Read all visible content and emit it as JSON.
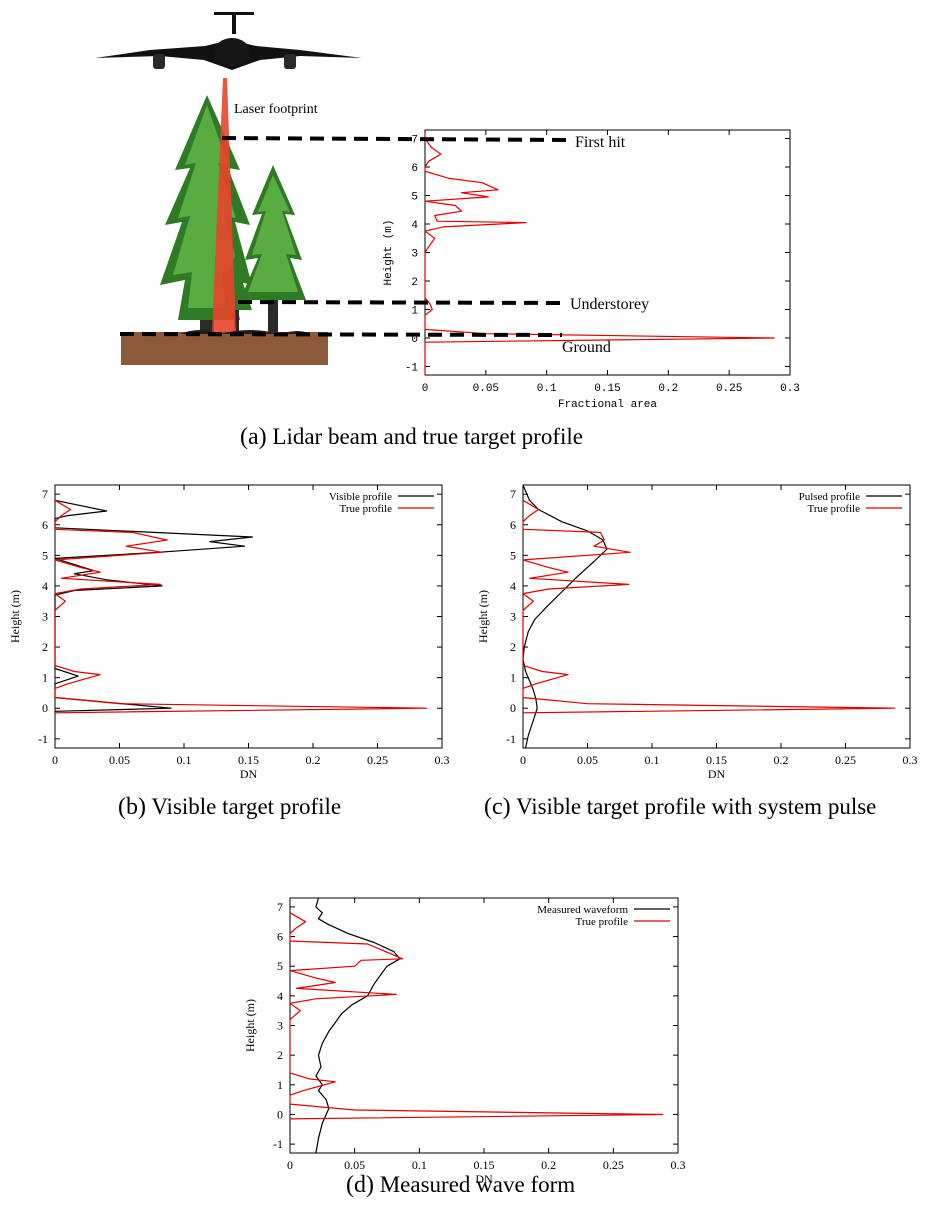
{
  "figure": {
    "panel_a": {
      "caption_label": "(a)",
      "caption_text": "Lidar beam and true target profile",
      "annotations": {
        "laser_footprint": "Laser footprint",
        "first_hit": "First hit",
        "understorey": "Understorey",
        "ground": "Ground"
      }
    },
    "panel_b": {
      "caption_label": "(b)",
      "caption_text": "Visible target profile"
    },
    "panel_c": {
      "caption_label": "(c)",
      "caption_text": "Visible target profile with system pulse"
    },
    "panel_d": {
      "caption_label": "(d)",
      "caption_text": "Measured wave form"
    },
    "colors": {
      "true_profile": "#e00000",
      "black_series": "#000000",
      "ground_soil": "#8a5a3a",
      "beam": "#e8442a",
      "tree_green": "#3a8f2a"
    }
  },
  "chart_data": [
    {
      "id": "a",
      "type": "line",
      "xlabel": "Fractional area",
      "ylabel": "Height (m)",
      "xlim": [
        0,
        0.3
      ],
      "ylim": [
        -1.3,
        7.3
      ],
      "xticks": [
        "0",
        "0.05",
        "0.1",
        "0.15",
        "0.2",
        "0.25",
        "0.3"
      ],
      "yticks": [
        "-1",
        "0",
        "1",
        "2",
        "3",
        "4",
        "5",
        "6",
        "7"
      ],
      "legend": [],
      "series": [
        {
          "color": "#e00000",
          "points": [
            [
              0,
              7.2
            ],
            [
              0,
              7.0
            ],
            [
              0.005,
              6.7
            ],
            [
              0.013,
              6.45
            ],
            [
              0.003,
              6.2
            ],
            [
              0,
              6.0
            ],
            [
              0.0,
              5.85
            ],
            [
              0.02,
              5.6
            ],
            [
              0.047,
              5.45
            ],
            [
              0.06,
              5.2
            ],
            [
              0.03,
              5.1
            ],
            [
              0.052,
              4.95
            ],
            [
              0.0,
              4.8
            ],
            [
              0.025,
              4.65
            ],
            [
              0.03,
              4.45
            ],
            [
              0.008,
              4.3
            ],
            [
              0.01,
              4.1
            ],
            [
              0.083,
              4.05
            ],
            [
              0.015,
              3.9
            ],
            [
              0.0,
              3.75
            ],
            [
              0.008,
              3.5
            ],
            [
              0.003,
              3.2
            ],
            [
              0.0,
              3.0
            ],
            [
              0.0,
              1.4
            ],
            [
              0.004,
              1.2
            ],
            [
              0.006,
              1.0
            ],
            [
              0.0,
              0.8
            ],
            [
              0.0,
              0.3
            ],
            [
              0.05,
              0.15
            ],
            [
              0.287,
              0.0
            ],
            [
              0.0,
              -0.15
            ],
            [
              0.0,
              -1.3
            ]
          ]
        }
      ]
    },
    {
      "id": "b",
      "type": "line",
      "xlabel": "DN",
      "ylabel": "Height (m)",
      "xlim": [
        0,
        0.3
      ],
      "ylim": [
        -1.3,
        7.3
      ],
      "xticks": [
        "0",
        "0.05",
        "0.1",
        "0.15",
        "0.2",
        "0.25",
        "0.3"
      ],
      "yticks": [
        "-1",
        "0",
        "1",
        "2",
        "3",
        "4",
        "5",
        "6",
        "7"
      ],
      "legend": [
        "Visible profile",
        "True profile"
      ],
      "series": [
        {
          "name": "Visible profile",
          "color": "#000000",
          "points": [
            [
              0,
              6.8
            ],
            [
              0.04,
              6.45
            ],
            [
              0.01,
              6.3
            ],
            [
              0,
              6.2
            ],
            [
              0,
              5.9
            ],
            [
              0.153,
              5.6
            ],
            [
              0.12,
              5.45
            ],
            [
              0.147,
              5.3
            ],
            [
              0.08,
              5.1
            ],
            [
              0,
              4.9
            ],
            [
              0.03,
              4.5
            ],
            [
              0.015,
              4.4
            ],
            [
              0.04,
              4.2
            ],
            [
              0.083,
              4.0
            ],
            [
              0.015,
              3.85
            ],
            [
              0,
              3.7
            ],
            [
              0,
              1.3
            ],
            [
              0.018,
              1.05
            ],
            [
              0,
              0.8
            ],
            [
              0,
              0.35
            ],
            [
              0.09,
              0.0
            ],
            [
              0,
              -0.1
            ]
          ]
        },
        {
          "name": "True profile",
          "color": "#e00000",
          "points": [
            [
              0,
              6.8
            ],
            [
              0.012,
              6.5
            ],
            [
              0.005,
              6.3
            ],
            [
              0,
              6.1
            ],
            [
              0,
              5.85
            ],
            [
              0.06,
              5.75
            ],
            [
              0.087,
              5.5
            ],
            [
              0.055,
              5.3
            ],
            [
              0.083,
              5.1
            ],
            [
              0,
              4.85
            ],
            [
              0.02,
              4.6
            ],
            [
              0.035,
              4.45
            ],
            [
              0.005,
              4.25
            ],
            [
              0.082,
              4.05
            ],
            [
              0.02,
              3.9
            ],
            [
              0,
              3.75
            ],
            [
              0.008,
              3.5
            ],
            [
              0,
              3.2
            ],
            [
              0,
              1.4
            ],
            [
              0.015,
              1.2
            ],
            [
              0.035,
              1.1
            ],
            [
              0.01,
              0.8
            ],
            [
              0,
              0.65
            ],
            [
              0,
              0.35
            ],
            [
              0.05,
              0.15
            ],
            [
              0.288,
              0.0
            ],
            [
              0,
              -0.15
            ]
          ]
        }
      ]
    },
    {
      "id": "c",
      "type": "line",
      "xlabel": "DN",
      "ylabel": "Height (m)",
      "xlim": [
        0,
        0.3
      ],
      "ylim": [
        -1.3,
        7.3
      ],
      "xticks": [
        "0",
        "0.05",
        "0.1",
        "0.15",
        "0.2",
        "0.25",
        "0.3"
      ],
      "yticks": [
        "-1",
        "0",
        "1",
        "2",
        "3",
        "4",
        "5",
        "6",
        "7"
      ],
      "legend": [
        "Pulsed profile",
        "True profile"
      ],
      "series": [
        {
          "name": "Pulsed profile",
          "color": "#000000",
          "points": [
            [
              0,
              7.3
            ],
            [
              0.005,
              6.8
            ],
            [
              0.012,
              6.5
            ],
            [
              0.03,
              6.1
            ],
            [
              0.05,
              5.8
            ],
            [
              0.062,
              5.5
            ],
            [
              0.065,
              5.2
            ],
            [
              0.055,
              4.8
            ],
            [
              0.042,
              4.3
            ],
            [
              0.03,
              3.8
            ],
            [
              0.018,
              3.3
            ],
            [
              0.009,
              2.9
            ],
            [
              0.004,
              2.5
            ],
            [
              0.001,
              2.0
            ],
            [
              0,
              1.6
            ],
            [
              0.002,
              1.2
            ],
            [
              0.005,
              0.9
            ],
            [
              0.008,
              0.6
            ],
            [
              0.01,
              0.3
            ],
            [
              0.011,
              0.0
            ],
            [
              0.008,
              -0.4
            ],
            [
              0.004,
              -0.9
            ],
            [
              0.002,
              -1.3
            ]
          ]
        },
        {
          "name": "True profile",
          "color": "#e00000",
          "points": [
            [
              0,
              6.8
            ],
            [
              0.012,
              6.5
            ],
            [
              0.005,
              6.3
            ],
            [
              0,
              6.1
            ],
            [
              0,
              5.85
            ],
            [
              0.06,
              5.75
            ],
            [
              0.063,
              5.5
            ],
            [
              0.055,
              5.3
            ],
            [
              0.083,
              5.1
            ],
            [
              0,
              4.85
            ],
            [
              0.02,
              4.6
            ],
            [
              0.035,
              4.45
            ],
            [
              0.005,
              4.25
            ],
            [
              0.082,
              4.05
            ],
            [
              0.02,
              3.9
            ],
            [
              0,
              3.75
            ],
            [
              0.008,
              3.5
            ],
            [
              0,
              3.2
            ],
            [
              0,
              1.4
            ],
            [
              0.015,
              1.2
            ],
            [
              0.035,
              1.1
            ],
            [
              0.01,
              0.8
            ],
            [
              0,
              0.65
            ],
            [
              0,
              0.35
            ],
            [
              0.05,
              0.15
            ],
            [
              0.288,
              0.0
            ],
            [
              0,
              -0.15
            ]
          ]
        }
      ]
    },
    {
      "id": "d",
      "type": "line",
      "xlabel": "DN",
      "ylabel": "Height (m)",
      "xlim": [
        0,
        0.3
      ],
      "ylim": [
        -1.3,
        7.3
      ],
      "xticks": [
        "0",
        "0.05",
        "0.1",
        "0.15",
        "0.2",
        "0.25",
        "0.3"
      ],
      "yticks": [
        "-1",
        "0",
        "1",
        "2",
        "3",
        "4",
        "5",
        "6",
        "7"
      ],
      "legend": [
        "Measured waveform",
        "True profile"
      ],
      "series": [
        {
          "name": "Measured waveform",
          "color": "#000000",
          "points": [
            [
              0.022,
              7.3
            ],
            [
              0.02,
              7.0
            ],
            [
              0.025,
              6.8
            ],
            [
              0.022,
              6.6
            ],
            [
              0.03,
              6.4
            ],
            [
              0.045,
              6.1
            ],
            [
              0.065,
              5.8
            ],
            [
              0.08,
              5.5
            ],
            [
              0.085,
              5.25
            ],
            [
              0.075,
              5.0
            ],
            [
              0.07,
              4.7
            ],
            [
              0.065,
              4.4
            ],
            [
              0.06,
              4.0
            ],
            [
              0.048,
              3.7
            ],
            [
              0.04,
              3.4
            ],
            [
              0.035,
              3.1
            ],
            [
              0.03,
              2.8
            ],
            [
              0.025,
              2.4
            ],
            [
              0.022,
              2.0
            ],
            [
              0.024,
              1.6
            ],
            [
              0.02,
              1.3
            ],
            [
              0.025,
              1.0
            ],
            [
              0.022,
              0.8
            ],
            [
              0.028,
              0.5
            ],
            [
              0.03,
              0.2
            ],
            [
              0.028,
              0.0
            ],
            [
              0.025,
              -0.3
            ],
            [
              0.022,
              -0.8
            ],
            [
              0.02,
              -1.3
            ]
          ]
        },
        {
          "name": "True profile",
          "color": "#e00000",
          "points": [
            [
              0,
              6.8
            ],
            [
              0.012,
              6.5
            ],
            [
              0.005,
              6.3
            ],
            [
              0,
              6.1
            ],
            [
              0,
              5.85
            ],
            [
              0.06,
              5.75
            ],
            [
              0.087,
              5.25
            ],
            [
              0.055,
              5.2
            ],
            [
              0.05,
              5.0
            ],
            [
              0.0,
              4.85
            ],
            [
              0.02,
              4.6
            ],
            [
              0.035,
              4.45
            ],
            [
              0.005,
              4.25
            ],
            [
              0.082,
              4.05
            ],
            [
              0.02,
              3.9
            ],
            [
              0,
              3.75
            ],
            [
              0.008,
              3.5
            ],
            [
              0,
              3.2
            ],
            [
              0,
              1.4
            ],
            [
              0.015,
              1.2
            ],
            [
              0.035,
              1.1
            ],
            [
              0.01,
              0.8
            ],
            [
              0,
              0.65
            ],
            [
              0,
              0.35
            ],
            [
              0.05,
              0.15
            ],
            [
              0.288,
              0.0
            ],
            [
              0,
              -0.15
            ]
          ]
        }
      ]
    }
  ]
}
